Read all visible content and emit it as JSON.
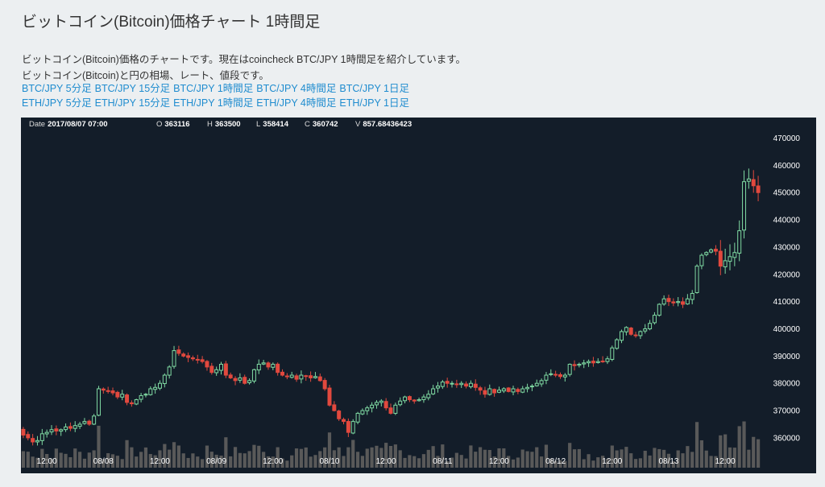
{
  "page": {
    "title": "ビットコイン(Bitcoin)価格チャート 1時間足",
    "desc1": "ビットコイン(Bitcoin)価格のチャートです。現在はcoincheck BTC/JPY 1時間足を紹介しています。",
    "desc2": "ビットコイン(Bitcoin)と円の相場、レート、値段です。"
  },
  "links": {
    "btc": [
      "BTC/JPY 5分足",
      "BTC/JPY 15分足",
      "BTC/JPY 1時間足",
      "BTC/JPY 4時間足",
      "BTC/JPY 1日足"
    ],
    "eth": [
      "ETH/JPY 5分足",
      "ETH/JPY 15分足",
      "ETH/JPY 1時間足",
      "ETH/JPY 4時間足",
      "ETH/JPY 1日足"
    ]
  },
  "hud": {
    "date_label": "Date",
    "date": "2017/08/07 07:00",
    "o_label": "O",
    "o": "363116",
    "h_label": "H",
    "h": "363500",
    "l_label": "L",
    "l": "358414",
    "c_label": "C",
    "c": "360742",
    "v_label": "V",
    "v": "857.68436423"
  },
  "colors": {
    "background": "#131d29",
    "up": "#7fd9a2",
    "down": "#e2493e",
    "volume": "#595959",
    "axis_text": "#ffffff",
    "link": "#1f8ccf"
  },
  "chart_data": {
    "type": "candlestick",
    "interval": "1h",
    "start": "2017/08/07 07:00",
    "ylim": [
      352000,
      474000
    ],
    "y_ticks": [
      360000,
      370000,
      380000,
      390000,
      400000,
      410000,
      420000,
      430000,
      440000,
      450000,
      460000,
      470000
    ],
    "y_tick_labels": [
      "360000",
      "370000",
      "380000",
      "390000",
      "400000",
      "410000",
      "420000",
      "430000",
      "440000",
      "450000",
      "460000",
      "470000"
    ],
    "x_tick_labels": [
      "12:00",
      "08/08",
      "12:00",
      "08/09",
      "12:00",
      "08/10",
      "12:00",
      "08/11",
      "12:00",
      "08/12",
      "12:00",
      "08/13",
      "12:00"
    ],
    "x_tick_hours": [
      5,
      17,
      29,
      41,
      53,
      65,
      77,
      89,
      101,
      113,
      125,
      137,
      149
    ],
    "closes": [
      361000,
      360000,
      358500,
      359000,
      361500,
      362000,
      363000,
      362500,
      363000,
      364000,
      363500,
      364500,
      365000,
      366000,
      365000,
      368000,
      378000,
      377500,
      377000,
      376500,
      375000,
      376000,
      373000,
      372500,
      374000,
      375500,
      376000,
      378000,
      378500,
      380000,
      383000,
      386000,
      392000,
      391000,
      390000,
      389500,
      389000,
      388500,
      388000,
      386000,
      384000,
      385000,
      387000,
      383000,
      382000,
      381000,
      382000,
      380000,
      381000,
      385000,
      387000,
      387500,
      386000,
      387000,
      384000,
      383000,
      382500,
      383000,
      381500,
      383000,
      382500,
      382000,
      382500,
      381000,
      378000,
      372000,
      370000,
      367000,
      366000,
      362000,
      366000,
      369000,
      370000,
      371000,
      372000,
      373000,
      373500,
      371000,
      369000,
      372000,
      373500,
      375000,
      374000,
      373500,
      374000,
      375000,
      376000,
      378000,
      379000,
      380500,
      380000,
      380000,
      379500,
      380000,
      379000,
      380000,
      378500,
      377500,
      376000,
      378000,
      376500,
      377500,
      378000,
      377000,
      378000,
      377000,
      378000,
      378500,
      379000,
      380000,
      381000,
      383000,
      383500,
      383000,
      382500,
      383000,
      387000,
      386500,
      387000,
      387500,
      388000,
      387500,
      388000,
      388000,
      389000,
      393000,
      396000,
      399000,
      400500,
      398000,
      397500,
      399000,
      400000,
      402000,
      405000,
      409000,
      411000,
      410000,
      409500,
      410000,
      409000,
      411000,
      413000,
      423000,
      427000,
      428000,
      429000,
      428500,
      423000,
      425000,
      426500,
      428000,
      436000,
      454000,
      455000,
      452500,
      450000
    ]
  }
}
